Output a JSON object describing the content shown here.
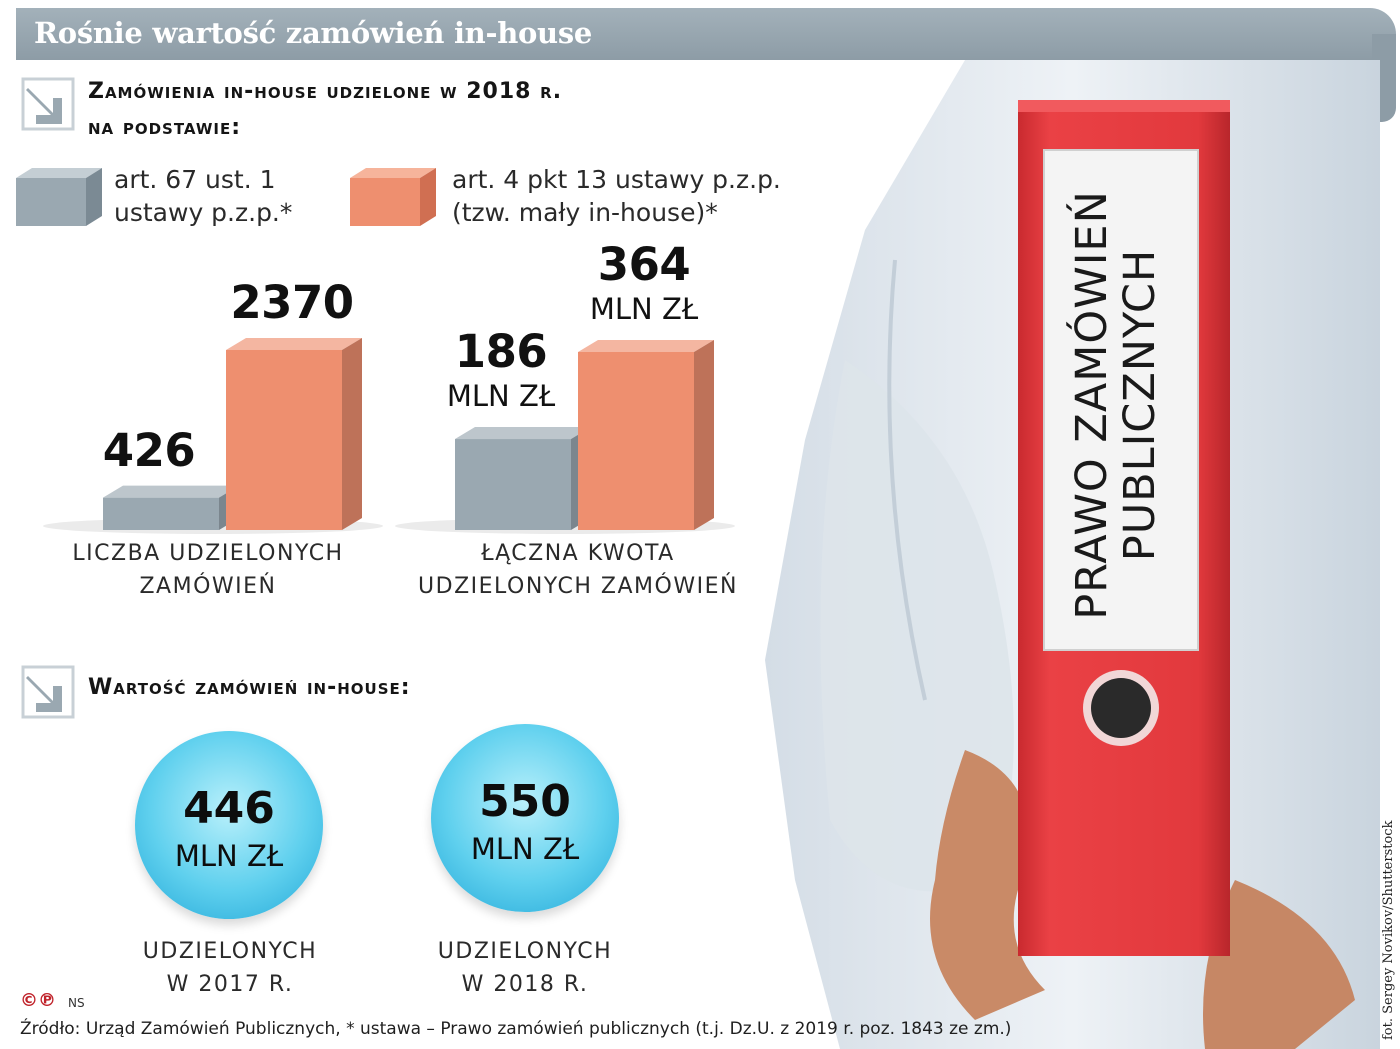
{
  "title": "Rośnie wartość zamówień in-house",
  "section1": {
    "heading_line1": "Zamówienia in-house udzielone w 2018 r.",
    "heading_line2": "na podstawie:"
  },
  "legend": [
    {
      "line1": "art. 67 ust. 1",
      "line2": "ustawy p.z.p.*",
      "color": "#9aa8b1"
    },
    {
      "line1": "art. 4 pkt 13 ustawy p.z.p.",
      "line2": "(tzw. mały in-house)*",
      "color": "#ee8f6f"
    }
  ],
  "chart_data": {
    "type": "bar",
    "series": [
      {
        "name": "art. 67 ust. 1 ustawy p.z.p.*",
        "color": "#9aa8b1"
      },
      {
        "name": "art. 4 pkt 13 ustawy p.z.p. (tzw. mały in-house)*",
        "color": "#ee8f6f"
      }
    ],
    "groups": [
      {
        "label_line1": "LICZBA UDZIELONYCH",
        "label_line2": "ZAMÓWIEŃ",
        "values": [
          426,
          2370
        ],
        "value_labels": [
          "426",
          "2370"
        ],
        "unit_labels": [
          "",
          ""
        ]
      },
      {
        "label_line1": "ŁĄCZNA KWOTA",
        "label_line2": "UDZIELONYCH ZAMÓWIEŃ",
        "values": [
          186,
          364
        ],
        "value_labels": [
          "186",
          "364"
        ],
        "unit_labels": [
          "MLN ZŁ",
          "MLN ZŁ"
        ]
      }
    ]
  },
  "section2": {
    "heading": "Wartość zamówień in-house:"
  },
  "circles": [
    {
      "value": "446",
      "unit": "MLN ZŁ",
      "label_line1": "UDZIELONYCH",
      "label_line2": "W 2017 R."
    },
    {
      "value": "550",
      "unit": "MLN ZŁ",
      "label_line1": "UDZIELONYCH",
      "label_line2": "W 2018 R."
    }
  ],
  "binder": {
    "line1": "PRAWO ZAMÓWIEŃ",
    "line2": "PUBLICZNYCH",
    "color": "#e23a3e"
  },
  "credit": "fot. Sergey Novikov/Shutterstock",
  "copyright_mark": "©℗",
  "initials": "NS",
  "source": "Źródło: Urząd Zamówień Publicznych, * ustawa – Prawo zamówień publicznych (t.j. Dz.U. z 2019 r. poz. 1843 ze zm.)"
}
